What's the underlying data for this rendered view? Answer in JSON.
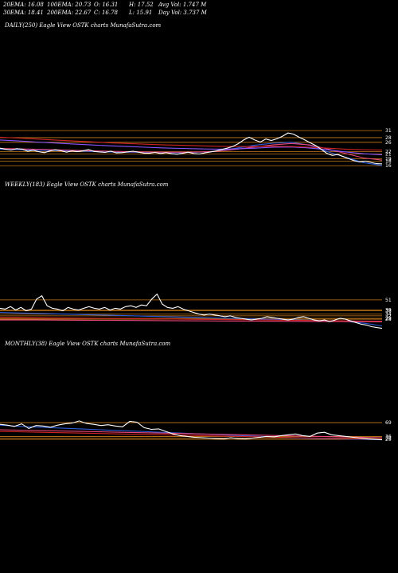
{
  "header": {
    "row1": [
      "20EMA: 16.08",
      "100EMA: 20.73",
      "O: 16.31",
      "H: 17.52",
      "Avg Vol: 1.747 M"
    ],
    "row2": [
      "30EMA: 18.41",
      "200EMA: 22.67",
      "C: 16.78",
      "L: 15.91",
      "Day Vol: 3.737 M"
    ]
  },
  "colors": {
    "background": "#000000",
    "price": "#ffffff",
    "level": "#c87a1a",
    "ema_blue": "#2b5bd8",
    "ema_pink": "#e8467a",
    "ema_purple": "#8855ff",
    "ema_red": "#cc2222"
  },
  "chart_data": [
    {
      "type": "line",
      "title": "DAILY(250) Eagle   View  OSTK charts MunafaSutra.com",
      "price": [
        23.5,
        23.0,
        22.7,
        23.3,
        23.1,
        22.2,
        22.6,
        22.0,
        21.6,
        22.3,
        22.8,
        22.4,
        21.8,
        22.3,
        22.0,
        22.4,
        22.9,
        22.1,
        21.9,
        21.7,
        22.2,
        21.5,
        21.6,
        21.9,
        22.2,
        21.8,
        21.4,
        21.3,
        21.7,
        21.2,
        21.6,
        21.1,
        20.9,
        21.3,
        21.8,
        21.2,
        21.0,
        21.5,
        21.9,
        22.3,
        22.9,
        23.5,
        24.2,
        25.4,
        27.0,
        28.2,
        27.0,
        26.1,
        27.4,
        26.8,
        27.5,
        28.6,
        30.0,
        29.5,
        28.2,
        27.1,
        25.8,
        24.6,
        23.0,
        21.3,
        20.4,
        20.8,
        19.9,
        19.0,
        18.1,
        17.6,
        18.0,
        17.4,
        16.9,
        16.8
      ],
      "series": [
        {
          "name": "20EMA",
          "values": [
            23.0,
            22.9,
            22.6,
            22.5,
            22.3,
            22.1,
            21.9,
            21.8,
            21.7,
            21.6,
            21.6,
            21.8,
            22.3,
            23.5,
            24.8,
            25.6,
            26.0,
            24.8,
            22.0,
            19.6,
            17.3,
            16.1
          ]
        },
        {
          "name": "30EMA",
          "values": [
            23.4,
            23.2,
            23.0,
            22.8,
            22.6,
            22.4,
            22.2,
            22.0,
            21.9,
            21.8,
            21.8,
            21.9,
            22.2,
            23.0,
            24.0,
            24.9,
            25.5,
            24.9,
            23.2,
            21.2,
            19.3,
            18.4
          ]
        },
        {
          "name": "100EMA",
          "values": [
            27.0,
            26.6,
            26.1,
            25.7,
            25.3,
            24.9,
            24.5,
            24.2,
            23.9,
            23.6,
            23.4,
            23.2,
            23.1,
            23.2,
            23.5,
            23.9,
            24.0,
            23.6,
            22.8,
            21.9,
            21.1,
            20.7
          ]
        },
        {
          "name": "200EMA",
          "values": [
            28.2,
            27.8,
            27.4,
            27.0,
            26.6,
            26.2,
            25.8,
            25.5,
            25.2,
            24.9,
            24.7,
            24.5,
            24.3,
            24.2,
            24.2,
            24.3,
            24.2,
            23.9,
            23.5,
            23.1,
            22.8,
            22.7
          ]
        }
      ],
      "levels": [
        31,
        28,
        26,
        22,
        21,
        19,
        18,
        16
      ],
      "tick_labels": [
        "31",
        "28",
        "26",
        "22",
        "21",
        "19",
        "18",
        "16"
      ],
      "ylim": [
        12,
        80
      ]
    },
    {
      "type": "line",
      "title": "WEEKLY(183) Eagle   View  OSTK charts MunafaSutra.com",
      "price": [
        41,
        40,
        43,
        39,
        42,
        38,
        40,
        52,
        56,
        44,
        41,
        40,
        38,
        42,
        40,
        39,
        41,
        43,
        41,
        40,
        42,
        39,
        41,
        40,
        43,
        44,
        42,
        45,
        44,
        52,
        58,
        46,
        42,
        41,
        43,
        40,
        38,
        36,
        34,
        33,
        34,
        33,
        32,
        31,
        32,
        30,
        29,
        28,
        27,
        28,
        29,
        31,
        30,
        29,
        28,
        27,
        28,
        30,
        31,
        29,
        27,
        26,
        27,
        25,
        27,
        29,
        28,
        26,
        24,
        22,
        21,
        19,
        18,
        17
      ],
      "series": [
        {
          "name": "EMA blue",
          "values": [
            36,
            35.5,
            35,
            34.5,
            34,
            33.5,
            33,
            32.5,
            32,
            31.5,
            31,
            30.5,
            30,
            29.5,
            29,
            28.5,
            28,
            27.5,
            27,
            26.5,
            26,
            25,
            23,
            20
          ]
        },
        {
          "name": "EMA red",
          "values": [
            30,
            30,
            29.8,
            29.6,
            29.4,
            29.2,
            29,
            28.8,
            28.6,
            28.4,
            28.2,
            28,
            27.8,
            27.6,
            27.4,
            27.2,
            27,
            26.8,
            26.6,
            26.4,
            26.2,
            26,
            25.8,
            25.6
          ]
        },
        {
          "name": "EMA pink",
          "values": [
            27,
            27,
            27,
            26.9,
            26.8,
            26.7,
            26.6,
            26.5,
            26.4,
            26.3,
            26.2,
            26.1,
            26,
            25.9,
            25.8,
            25.7,
            25.6,
            25.5,
            25.4,
            25.3,
            25.2,
            25.1,
            25,
            24.9
          ]
        }
      ],
      "levels": [
        51,
        39,
        38,
        34,
        32,
        29,
        28
      ],
      "tick_labels": [
        "51",
        "39",
        "38",
        "34",
        "32",
        "29",
        "28"
      ],
      "ylim": [
        10,
        200
      ]
    },
    {
      "type": "line",
      "title": "MONTHLY(38) Eagle   View  OSTK charts MunafaSutra.com",
      "price": [
        65,
        63,
        60,
        66,
        55,
        62,
        61,
        58,
        63,
        66,
        68,
        73,
        67,
        65,
        62,
        64,
        61,
        59,
        72,
        70,
        57,
        53,
        54,
        48,
        42,
        38,
        36,
        34,
        33,
        32,
        31,
        30,
        33,
        31,
        30,
        32,
        34,
        36,
        35,
        38,
        40,
        42,
        38,
        36,
        44,
        46,
        40,
        38,
        36,
        34,
        32,
        30,
        29,
        28
      ],
      "series": [
        {
          "name": "EMA blue",
          "values": [
            63,
            60,
            58,
            56,
            54,
            52,
            50,
            48,
            46,
            44,
            42,
            40,
            38,
            36,
            34,
            32,
            31,
            30,
            29,
            28
          ]
        },
        {
          "name": "EMA pink",
          "values": [
            52,
            51,
            50,
            49,
            48,
            47,
            46,
            45,
            44,
            43,
            42,
            41,
            40,
            39,
            38,
            37,
            36,
            35,
            34,
            33
          ]
        },
        {
          "name": "EMA red",
          "values": [
            48,
            47,
            46,
            45,
            44,
            43,
            42,
            41,
            40,
            39,
            38,
            37,
            36,
            35,
            34,
            33,
            32,
            31,
            30,
            29
          ]
        }
      ],
      "levels": [
        69,
        36,
        32,
        29
      ],
      "tick_labels": [
        "69",
        "36",
        "32",
        "29"
      ],
      "ylim": [
        -100,
        280
      ]
    }
  ]
}
